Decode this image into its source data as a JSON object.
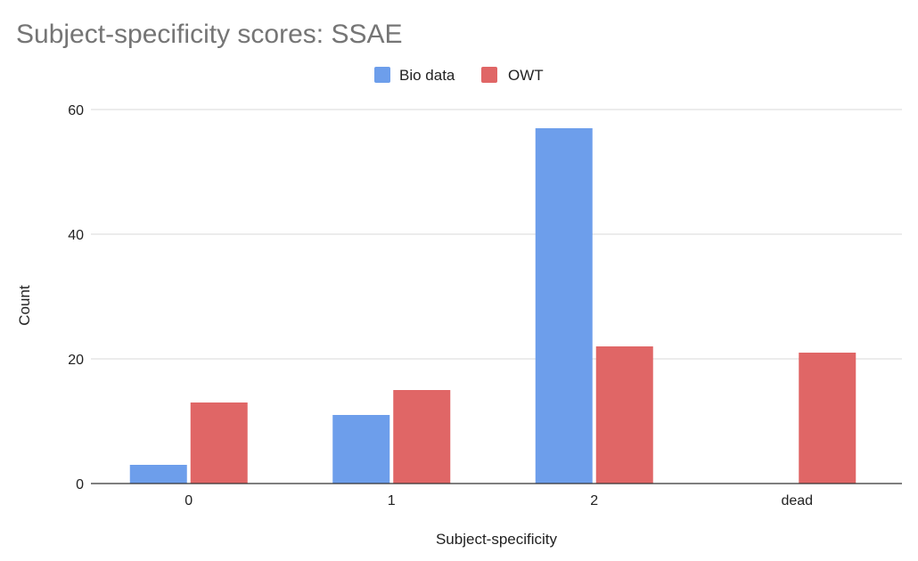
{
  "chart_data": {
    "type": "bar",
    "title": "Subject-specificity scores: SSAE",
    "xlabel": "Subject-specificity",
    "ylabel": "Count",
    "categories": [
      "0",
      "1",
      "2",
      "dead"
    ],
    "series": [
      {
        "name": "Bio data",
        "values": [
          3,
          11,
          57,
          0
        ],
        "color": "#6d9eeb"
      },
      {
        "name": "OWT",
        "values": [
          13,
          15,
          22,
          21
        ],
        "color": "#e06666"
      }
    ],
    "ylim": [
      0,
      60
    ],
    "yticks": [
      "0",
      "20",
      "40",
      "60"
    ],
    "grid": true,
    "legend_position": "top-center"
  }
}
